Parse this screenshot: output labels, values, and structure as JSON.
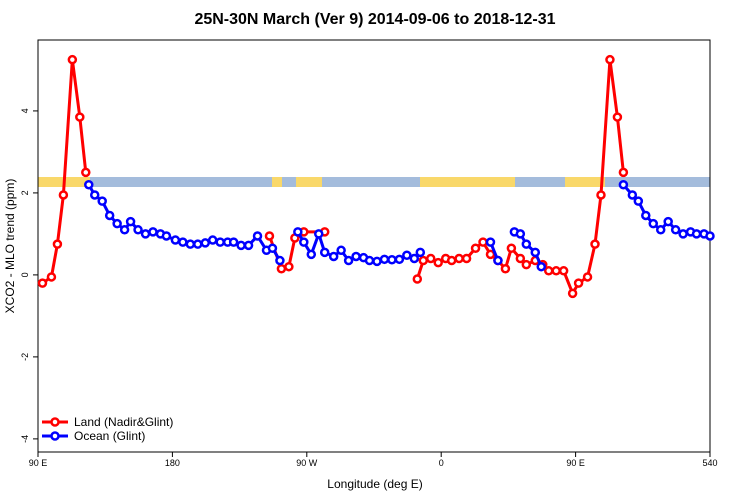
{
  "chart_data": {
    "type": "line",
    "title": "25N-30N March (Ver 9)   2014-09-06 to 2018-12-31",
    "xlabel": "Longitude (deg E)",
    "ylabel": "XCO2 - MLO trend (ppm)",
    "xlim": [
      90,
      540
    ],
    "ylim": [
      -4.32,
      5.73
    ],
    "xticks": [
      {
        "value": 90,
        "label": "90 E"
      },
      180,
      {
        "value": 270,
        "label": "90 W"
      },
      {
        "value": 360,
        "label": "0"
      },
      {
        "value": 450,
        "label": "90 E"
      },
      540
    ],
    "yticks": [
      -4,
      -2,
      0,
      2,
      4
    ],
    "legend": "bottom-left",
    "series": [
      {
        "name": "Land (Nadir&Glint)",
        "color": "#ff0000",
        "x": [
          93,
          99,
          103,
          107,
          113,
          118,
          122,
          null,
          245,
          253,
          258,
          262,
          268,
          282,
          null,
          344,
          348,
          353,
          358,
          363,
          367,
          372,
          377,
          383,
          388,
          393,
          398,
          403,
          407,
          413,
          417,
          423,
          428,
          432,
          437,
          442,
          448,
          452,
          458,
          463,
          467,
          473,
          478,
          482
        ],
        "values": [
          -0.2,
          -0.05,
          0.75,
          1.95,
          5.25,
          3.85,
          2.5,
          null,
          0.95,
          0.15,
          0.2,
          0.9,
          1.05,
          1.05,
          null,
          -0.1,
          0.35,
          0.4,
          0.3,
          0.4,
          0.35,
          0.4,
          0.4,
          0.65,
          0.8,
          0.5,
          0.35,
          0.15,
          0.65,
          0.4,
          0.25,
          0.35,
          0.25,
          0.1,
          0.1,
          0.1,
          -0.45,
          -0.2,
          -0.05,
          0.75,
          1.95,
          5.25,
          3.85,
          2.5
        ]
      },
      {
        "name": "Ocean (Glint)",
        "color": "#0000ff",
        "x": [
          124,
          128,
          133,
          138,
          143,
          148,
          152,
          157,
          162,
          167,
          172,
          176,
          182,
          187,
          192,
          197,
          202,
          207,
          212,
          217,
          221,
          226,
          231,
          237,
          243,
          247,
          252,
          null,
          264,
          268,
          273,
          278,
          282,
          288,
          293,
          298,
          303,
          308,
          312,
          317,
          322,
          327,
          332,
          337,
          342,
          346,
          null,
          393,
          398,
          null,
          409,
          413,
          417,
          423,
          427,
          null,
          482,
          488,
          492,
          497,
          502,
          507,
          512,
          517,
          522,
          527,
          531,
          536,
          540
        ],
        "values": [
          2.2,
          1.95,
          1.8,
          1.45,
          1.25,
          1.1,
          1.3,
          1.1,
          1.0,
          1.05,
          1.0,
          0.95,
          0.85,
          0.8,
          0.75,
          0.75,
          0.78,
          0.85,
          0.8,
          0.8,
          0.8,
          0.72,
          0.72,
          0.95,
          0.6,
          0.65,
          0.35,
          null,
          1.05,
          0.8,
          0.5,
          1.0,
          0.55,
          0.45,
          0.6,
          0.35,
          0.45,
          0.42,
          0.35,
          0.33,
          0.38,
          0.37,
          0.38,
          0.48,
          0.4,
          0.55,
          null,
          0.8,
          0.35,
          null,
          1.05,
          1.0,
          0.75,
          0.55,
          0.2,
          null,
          2.2,
          1.95,
          1.8,
          1.45,
          1.25,
          1.1,
          1.3,
          1.1,
          1.0,
          1.05,
          1.0,
          1.0,
          0.95
        ]
      }
    ]
  }
}
